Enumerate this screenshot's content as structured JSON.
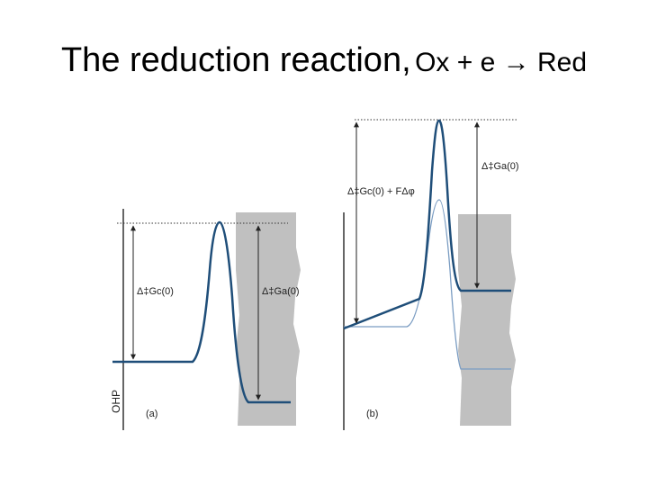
{
  "slide": {
    "title_main": "The reduction reaction,",
    "title_equation": "Ox + e → Red"
  },
  "diagram": {
    "panel_a": {
      "label": "(a)",
      "axis_label": "OHP",
      "barrier_label_left": "Δ‡Gc(0)",
      "barrier_label_right": "Δ‡Ga(0)"
    },
    "panel_b": {
      "label": "(b)",
      "barrier_label_left": "Δ‡Gc(0) + FΔφ",
      "barrier_label_right": "Δ‡Ga(0)"
    },
    "colors": {
      "curve_primary": "#1f4e79",
      "curve_secondary": "#7a9cc2",
      "electrode_shading": "#c0c0c0",
      "arrow": "#222222"
    }
  }
}
